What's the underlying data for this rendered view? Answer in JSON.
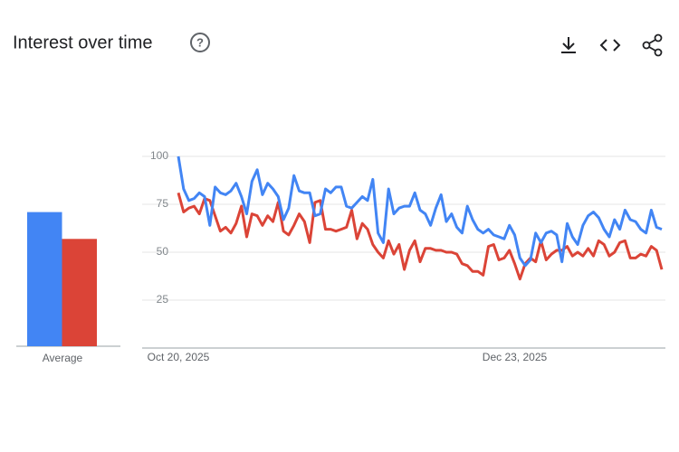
{
  "chart_data": {
    "type": "line",
    "title": "Interest over time",
    "average_label": "Average",
    "categories": [
      "Oct 20, 2025",
      null,
      null,
      null,
      null,
      null,
      null,
      null,
      null,
      null,
      null,
      null,
      null,
      null,
      null,
      null,
      null,
      null,
      null,
      null,
      null,
      null,
      null,
      null,
      null,
      null,
      null,
      null,
      null,
      null,
      null,
      null,
      null,
      null,
      null,
      null,
      null,
      null,
      null,
      null,
      null,
      null,
      null,
      null,
      null,
      null,
      null,
      null,
      null,
      null,
      null,
      null,
      null,
      null,
      null,
      null,
      null,
      null,
      null,
      null,
      null,
      null,
      null,
      null,
      "Dec 23, 2025",
      null,
      null,
      null,
      null,
      null,
      null,
      null,
      null,
      null,
      null,
      null,
      null,
      null,
      null,
      null,
      null,
      null,
      null,
      null,
      null,
      null,
      null,
      null,
      null,
      null,
      null,
      null,
      null
    ],
    "series": [
      {
        "color": "#4285f4",
        "average": 70,
        "values": [
          100,
          83,
          77,
          78,
          81,
          79,
          64,
          84,
          81,
          80,
          82,
          86,
          79,
          70,
          87,
          93,
          80,
          86,
          83,
          79,
          67,
          73,
          90,
          82,
          81,
          81,
          69,
          70,
          83,
          81,
          84,
          84,
          74,
          73,
          76,
          79,
          77,
          88,
          60,
          55,
          83,
          70,
          73,
          74,
          74,
          81,
          72,
          70,
          64,
          73,
          80,
          66,
          70,
          63,
          60,
          74,
          67,
          62,
          60,
          62,
          59,
          58,
          57,
          64,
          59,
          47,
          43,
          46,
          60,
          55,
          60,
          61,
          59,
          45,
          65,
          58,
          54,
          64,
          69,
          71,
          68,
          62,
          58,
          67,
          62,
          72,
          67,
          66,
          62,
          60,
          72,
          63,
          62
        ]
      },
      {
        "color": "#db4437",
        "average": 56,
        "values": [
          81,
          71,
          73,
          74,
          70,
          78,
          77,
          69,
          61,
          63,
          60,
          65,
          74,
          58,
          70,
          69,
          64,
          69,
          66,
          76,
          61,
          59,
          64,
          70,
          66,
          55,
          76,
          77,
          62,
          62,
          61,
          62,
          63,
          72,
          57,
          65,
          62,
          54,
          50,
          47,
          56,
          49,
          54,
          41,
          51,
          56,
          45,
          52,
          52,
          51,
          51,
          50,
          50,
          49,
          44,
          43,
          40,
          40,
          38,
          53,
          54,
          46,
          47,
          51,
          44,
          36,
          44,
          47,
          45,
          56,
          46,
          49,
          51,
          51,
          53,
          48,
          50,
          48,
          52,
          48,
          56,
          54,
          48,
          50,
          55,
          56,
          47,
          47,
          49,
          48,
          53,
          51,
          41
        ]
      }
    ],
    "ylim": [
      0,
      100
    ],
    "yticks": [
      25,
      50,
      75,
      100
    ],
    "grid": true
  }
}
